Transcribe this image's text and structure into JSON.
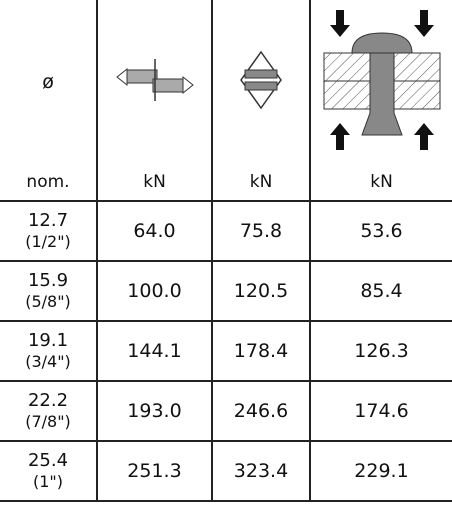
{
  "header": {
    "symbol": "ø"
  },
  "units": [
    "nom.",
    "kN",
    "kN",
    "kN"
  ],
  "rows": [
    {
      "diameter": "12.7",
      "inch": "(1/2\")",
      "values": [
        "64.0",
        "75.8",
        "53.6"
      ]
    },
    {
      "diameter": "15.9",
      "inch": "(5/8\")",
      "values": [
        "100.0",
        "120.5",
        "85.4"
      ]
    },
    {
      "diameter": "19.1",
      "inch": "(3/4\")",
      "values": [
        "144.1",
        "178.4",
        "126.3"
      ]
    },
    {
      "diameter": "22.2",
      "inch": "(7/8\")",
      "values": [
        "193.0",
        "246.6",
        "174.6"
      ]
    },
    {
      "diameter": "25.4",
      "inch": "(1\")",
      "values": [
        "251.3",
        "323.4",
        "229.1"
      ]
    }
  ]
}
